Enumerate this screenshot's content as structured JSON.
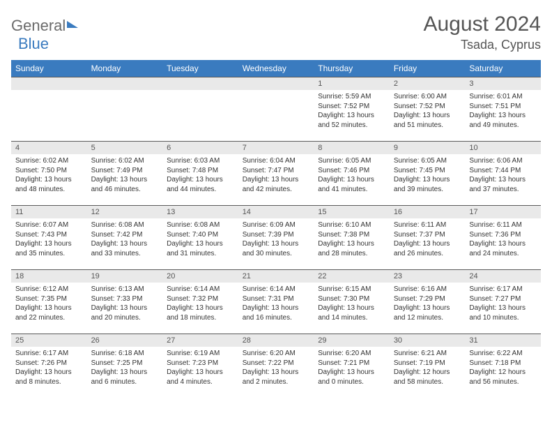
{
  "logo": {
    "word1": "General",
    "word2": "Blue"
  },
  "header": {
    "month_title": "August 2024",
    "location": "Tsada, Cyprus"
  },
  "weekdays": [
    "Sunday",
    "Monday",
    "Tuesday",
    "Wednesday",
    "Thursday",
    "Friday",
    "Saturday"
  ],
  "colors": {
    "header_bg": "#3a7bbf",
    "daynum_bg": "#e9e9e9",
    "border": "#5a5a5a"
  },
  "weeks": [
    [
      {
        "blank": true
      },
      {
        "blank": true
      },
      {
        "blank": true
      },
      {
        "blank": true
      },
      {
        "day": "1",
        "sunrise": "5:59 AM",
        "sunset": "7:52 PM",
        "daylight": "13 hours and 52 minutes."
      },
      {
        "day": "2",
        "sunrise": "6:00 AM",
        "sunset": "7:52 PM",
        "daylight": "13 hours and 51 minutes."
      },
      {
        "day": "3",
        "sunrise": "6:01 AM",
        "sunset": "7:51 PM",
        "daylight": "13 hours and 49 minutes."
      }
    ],
    [
      {
        "day": "4",
        "sunrise": "6:02 AM",
        "sunset": "7:50 PM",
        "daylight": "13 hours and 48 minutes."
      },
      {
        "day": "5",
        "sunrise": "6:02 AM",
        "sunset": "7:49 PM",
        "daylight": "13 hours and 46 minutes."
      },
      {
        "day": "6",
        "sunrise": "6:03 AM",
        "sunset": "7:48 PM",
        "daylight": "13 hours and 44 minutes."
      },
      {
        "day": "7",
        "sunrise": "6:04 AM",
        "sunset": "7:47 PM",
        "daylight": "13 hours and 42 minutes."
      },
      {
        "day": "8",
        "sunrise": "6:05 AM",
        "sunset": "7:46 PM",
        "daylight": "13 hours and 41 minutes."
      },
      {
        "day": "9",
        "sunrise": "6:05 AM",
        "sunset": "7:45 PM",
        "daylight": "13 hours and 39 minutes."
      },
      {
        "day": "10",
        "sunrise": "6:06 AM",
        "sunset": "7:44 PM",
        "daylight": "13 hours and 37 minutes."
      }
    ],
    [
      {
        "day": "11",
        "sunrise": "6:07 AM",
        "sunset": "7:43 PM",
        "daylight": "13 hours and 35 minutes."
      },
      {
        "day": "12",
        "sunrise": "6:08 AM",
        "sunset": "7:42 PM",
        "daylight": "13 hours and 33 minutes."
      },
      {
        "day": "13",
        "sunrise": "6:08 AM",
        "sunset": "7:40 PM",
        "daylight": "13 hours and 31 minutes."
      },
      {
        "day": "14",
        "sunrise": "6:09 AM",
        "sunset": "7:39 PM",
        "daylight": "13 hours and 30 minutes."
      },
      {
        "day": "15",
        "sunrise": "6:10 AM",
        "sunset": "7:38 PM",
        "daylight": "13 hours and 28 minutes."
      },
      {
        "day": "16",
        "sunrise": "6:11 AM",
        "sunset": "7:37 PM",
        "daylight": "13 hours and 26 minutes."
      },
      {
        "day": "17",
        "sunrise": "6:11 AM",
        "sunset": "7:36 PM",
        "daylight": "13 hours and 24 minutes."
      }
    ],
    [
      {
        "day": "18",
        "sunrise": "6:12 AM",
        "sunset": "7:35 PM",
        "daylight": "13 hours and 22 minutes."
      },
      {
        "day": "19",
        "sunrise": "6:13 AM",
        "sunset": "7:33 PM",
        "daylight": "13 hours and 20 minutes."
      },
      {
        "day": "20",
        "sunrise": "6:14 AM",
        "sunset": "7:32 PM",
        "daylight": "13 hours and 18 minutes."
      },
      {
        "day": "21",
        "sunrise": "6:14 AM",
        "sunset": "7:31 PM",
        "daylight": "13 hours and 16 minutes."
      },
      {
        "day": "22",
        "sunrise": "6:15 AM",
        "sunset": "7:30 PM",
        "daylight": "13 hours and 14 minutes."
      },
      {
        "day": "23",
        "sunrise": "6:16 AM",
        "sunset": "7:29 PM",
        "daylight": "13 hours and 12 minutes."
      },
      {
        "day": "24",
        "sunrise": "6:17 AM",
        "sunset": "7:27 PM",
        "daylight": "13 hours and 10 minutes."
      }
    ],
    [
      {
        "day": "25",
        "sunrise": "6:17 AM",
        "sunset": "7:26 PM",
        "daylight": "13 hours and 8 minutes."
      },
      {
        "day": "26",
        "sunrise": "6:18 AM",
        "sunset": "7:25 PM",
        "daylight": "13 hours and 6 minutes."
      },
      {
        "day": "27",
        "sunrise": "6:19 AM",
        "sunset": "7:23 PM",
        "daylight": "13 hours and 4 minutes."
      },
      {
        "day": "28",
        "sunrise": "6:20 AM",
        "sunset": "7:22 PM",
        "daylight": "13 hours and 2 minutes."
      },
      {
        "day": "29",
        "sunrise": "6:20 AM",
        "sunset": "7:21 PM",
        "daylight": "13 hours and 0 minutes."
      },
      {
        "day": "30",
        "sunrise": "6:21 AM",
        "sunset": "7:19 PM",
        "daylight": "12 hours and 58 minutes."
      },
      {
        "day": "31",
        "sunrise": "6:22 AM",
        "sunset": "7:18 PM",
        "daylight": "12 hours and 56 minutes."
      }
    ]
  ]
}
